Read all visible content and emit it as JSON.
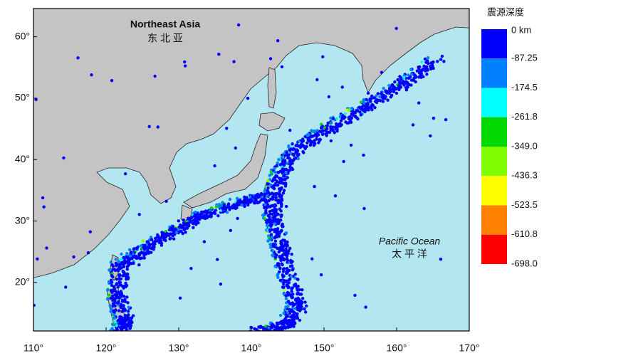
{
  "map": {
    "xlim": [
      110,
      170
    ],
    "ylim": [
      12.1,
      64.6
    ],
    "xticks": [
      {
        "value": 110,
        "label": "110°"
      },
      {
        "value": 120,
        "label": "120°"
      },
      {
        "value": 130,
        "label": "130°"
      },
      {
        "value": 140,
        "label": "140°"
      },
      {
        "value": 150,
        "label": "150°"
      },
      {
        "value": 160,
        "label": "160°"
      },
      {
        "value": 170,
        "label": "170°"
      }
    ],
    "yticks": [
      {
        "value": 20,
        "label": "20°"
      },
      {
        "value": 30,
        "label": "30°"
      },
      {
        "value": 40,
        "label": "40°"
      },
      {
        "value": 50,
        "label": "50°"
      },
      {
        "value": 60,
        "label": "60°"
      }
    ],
    "regions": [
      {
        "name": "Northeast Asia",
        "name_cn": "东 北 亚"
      },
      {
        "name": "Pacific Ocean",
        "name_cn": "太 平 洋"
      }
    ]
  },
  "legend": {
    "title": "震源深度",
    "colors": [
      "#0000ff",
      "#0080ff",
      "#00ffff",
      "#00d800",
      "#80ff00",
      "#ffff00",
      "#ff8000",
      "#ff0000"
    ],
    "labels": [
      "0   km",
      "-87.25",
      "-174.5",
      "-261.8",
      "-349.0",
      "-436.3",
      "-523.5",
      "-610.8",
      "-698.0"
    ]
  }
}
